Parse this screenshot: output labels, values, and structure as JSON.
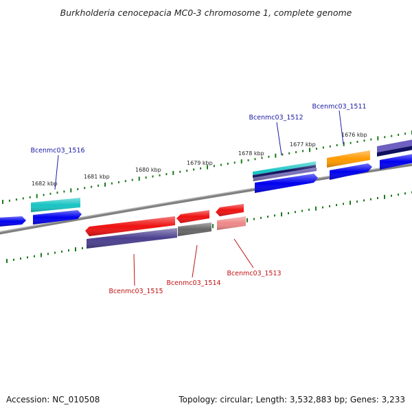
{
  "title": "Burkholderia cenocepacia MC0-3 chromosome 1, complete genome",
  "footer": {
    "accession": "Accession: NC_010508",
    "summary": "Topology: circular; Length: 3,532,883 bp; Genes: 3,233"
  },
  "ticks": [
    {
      "label": "1682 kbp"
    },
    {
      "label": "1681 kbp"
    },
    {
      "label": "1680 kbp"
    },
    {
      "label": "1679 kbp"
    },
    {
      "label": "1678 kbp"
    },
    {
      "label": "1677 kbp"
    },
    {
      "label": "1676 kbp"
    }
  ],
  "gene_labels": [
    {
      "text": "Bcenmc03_1516",
      "color": "#1a1aa6"
    },
    {
      "text": "Bcenmc03_1512",
      "color": "#1a1aa6"
    },
    {
      "text": "Bcenmc03_1511",
      "color": "#1a1aa6"
    },
    {
      "text": "Bcenmc03_1515",
      "color": "#c01010"
    },
    {
      "text": "Bcenmc03_1514",
      "color": "#c01010"
    },
    {
      "text": "Bcenmc03_1513",
      "color": "#c01010"
    }
  ],
  "colors": {
    "backbone": "#808080",
    "tick": "#1a7a1a",
    "forward_cds": "#0000ee",
    "reverse_cds": "#ee1111",
    "cyan_feature": "#18c4c4",
    "purple_feature": "#4a3f8f",
    "orange_feature": "#ff9900",
    "gray_feature": "#666666",
    "pink_feature": "#ee8888",
    "navy_feature": "#101060",
    "violet_feature": "#6e5fc0"
  }
}
